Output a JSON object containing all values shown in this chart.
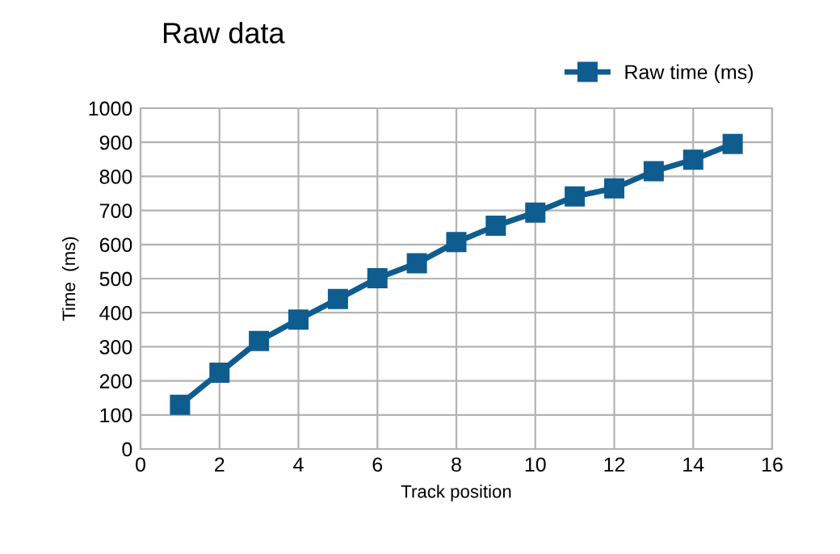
{
  "chart_data": {
    "type": "line",
    "title": "Raw data",
    "xlabel": "Track position",
    "ylabel": "Time  (ms)",
    "x": [
      1,
      2,
      3,
      4,
      5,
      6,
      7,
      8,
      9,
      10,
      11,
      12,
      13,
      14,
      15
    ],
    "series": [
      {
        "name": "Raw time (ms)",
        "color": "#0f5d8f",
        "values": [
          130,
          224,
          317,
          380,
          440,
          501,
          545,
          607,
          655,
          694,
          741,
          765,
          815,
          849,
          895
        ]
      }
    ],
    "xlim": [
      0,
      16
    ],
    "xticks": [
      0,
      2,
      4,
      6,
      8,
      10,
      12,
      14,
      16
    ],
    "ylim": [
      0,
      1000
    ],
    "yticks": [
      0,
      100,
      200,
      300,
      400,
      500,
      600,
      700,
      800,
      900,
      1000
    ],
    "grid": true,
    "legend": "top right",
    "marker": "square",
    "line_style": "solid"
  }
}
